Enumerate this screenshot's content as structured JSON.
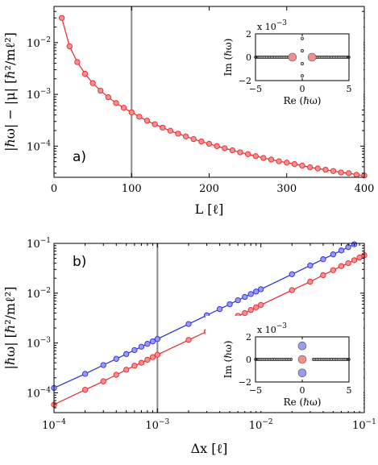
{
  "chart_data": [
    {
      "id": "a",
      "type": "line",
      "panel_label": "a)",
      "xlabel": "L [ℓ]",
      "ylabel": "|ℏω| − |μ| [ℏ²/mℓ²]",
      "xlim": [
        0,
        400
      ],
      "ylim": [
        2.5e-05,
        0.05
      ],
      "yscale": "log",
      "xticks": [
        0,
        100,
        200,
        300,
        400
      ],
      "xticklabels": [
        "0",
        "100",
        "200",
        "300",
        "400"
      ],
      "yticks": [
        0.0001,
        0.001,
        0.01
      ],
      "yticklabels": [
        "10",
        "10",
        "10"
      ],
      "ytickexps": [
        "−4",
        "−3",
        "−2"
      ],
      "vline": 100,
      "series": [
        {
          "color": "#e8262b",
          "fill": "#f29090",
          "x": [
            10,
            20,
            30,
            40,
            50,
            60,
            70,
            80,
            90,
            100,
            110,
            120,
            130,
            140,
            150,
            160,
            170,
            180,
            190,
            200,
            210,
            220,
            230,
            240,
            250,
            260,
            270,
            280,
            290,
            300,
            310,
            320,
            330,
            340,
            350,
            360,
            370,
            380,
            390,
            400
          ],
          "y": [
            0.03,
            0.0085,
            0.0042,
            0.0025,
            0.00165,
            0.00118,
            0.00088,
            0.00068,
            0.00055,
            0.00045,
            0.00037,
            0.00031,
            0.000265,
            0.000228,
            0.000198,
            0.000174,
            0.000154,
            0.000137,
            0.000123,
            0.000111,
            0.0001,
            9.1e-05,
            8.3e-05,
            7.6e-05,
            7e-05,
            6.4e-05,
            5.9e-05,
            5.5e-05,
            5.1e-05,
            4.8e-05,
            4.5e-05,
            4.2e-05,
            3.9e-05,
            3.7e-05,
            3.5e-05,
            3.3e-05,
            3.1e-05,
            3e-05,
            2.8e-05,
            2.7e-05
          ]
        }
      ],
      "inset": {
        "xlabel": "Re (ℏω)",
        "ylabel": "Im (ℏω)",
        "scale_label": "x 10",
        "scale_exp": "−3",
        "xlim": [
          -5,
          5
        ],
        "ylim": [
          -2,
          2
        ],
        "xticks": [
          -5,
          0,
          5
        ],
        "xticklabels": [
          "−5",
          "0",
          "5"
        ],
        "yticks": [
          -2,
          0,
          2
        ],
        "yticklabels": [
          "−2",
          "0",
          "2"
        ],
        "continuum": {
          "from": 1.2,
          "to": 5,
          "y": 0
        },
        "small_points": [
          {
            "x": 0,
            "y": 1.6
          },
          {
            "x": 0,
            "y": 0.55
          },
          {
            "x": 0,
            "y": -0.55
          },
          {
            "x": 0,
            "y": -1.6
          }
        ],
        "big_points": [
          {
            "x": -1.05,
            "y": 0,
            "color": "#f29090"
          },
          {
            "x": 1.05,
            "y": 0,
            "color": "#f29090"
          }
        ]
      }
    },
    {
      "id": "b",
      "type": "line",
      "panel_label": "b)",
      "xlabel": "Δx [ℓ]",
      "ylabel": "|ℏω| [ℏ²/mℓ²]",
      "xlim": [
        0.0001,
        0.1
      ],
      "ylim": [
        4e-05,
        0.1
      ],
      "xscale": "log",
      "yscale": "log",
      "xticks": [
        0.0001,
        0.001,
        0.01,
        0.1
      ],
      "xticklabels": [
        "10",
        "10",
        "10",
        "10"
      ],
      "xtickexps": [
        "−4",
        "−3",
        "−2",
        "−1"
      ],
      "yticks": [
        0.0001,
        0.001,
        0.01,
        0.1
      ],
      "yticklabels": [
        "10",
        "10",
        "10",
        "10"
      ],
      "ytickexps": [
        "−4",
        "−3",
        "−2",
        "−1"
      ],
      "vline": 0.001,
      "series": [
        {
          "color": "#2a2ae0",
          "fill": "#9a9af0",
          "x": [
            0.0001,
            0.0002,
            0.0003,
            0.0004,
            0.0005,
            0.0006,
            0.0007,
            0.0008,
            0.0009,
            0.001,
            0.002,
            0.003,
            0.004,
            0.005,
            0.006,
            0.007,
            0.008,
            0.009,
            0.01,
            0.02,
            0.03,
            0.04,
            0.05,
            0.06,
            0.07,
            0.08
          ],
          "y": [
            0.000125,
            0.00024,
            0.00036,
            0.00048,
            0.0006,
            0.00072,
            0.00084,
            0.00096,
            0.00108,
            0.0012,
            0.0024,
            0.0036,
            0.0048,
            0.006,
            0.0072,
            0.0084,
            0.0096,
            0.0108,
            0.012,
            0.024,
            0.036,
            0.048,
            0.06,
            0.072,
            0.084,
            0.096
          ]
        },
        {
          "color": "#e8262b",
          "fill": "#f29090",
          "x": [
            0.0001,
            0.0002,
            0.0003,
            0.0004,
            0.0005,
            0.0006,
            0.0007,
            0.0008,
            0.0009,
            0.001,
            0.002,
            0.003,
            0.004,
            0.005,
            0.006,
            0.007,
            0.008,
            0.009,
            0.01,
            0.02,
            0.03,
            0.04,
            0.05,
            0.06,
            0.07,
            0.08,
            0.09,
            0.1
          ],
          "y": [
            5.8e-05,
            0.000115,
            0.00017,
            0.00023,
            0.00029,
            0.00035,
            0.0004,
            0.00046,
            0.00052,
            0.00058,
            0.00115,
            0.0017,
            0.0023,
            0.0029,
            0.0035,
            0.004,
            0.0046,
            0.0052,
            0.0058,
            0.0115,
            0.017,
            0.023,
            0.029,
            0.035,
            0.04,
            0.046,
            0.052,
            0.058
          ]
        }
      ],
      "inset": {
        "xlabel": "Re (ℏω)",
        "ylabel": "Im (ℏω)",
        "scale_label": "x 10",
        "scale_exp": "−3",
        "xlim": [
          -5,
          5
        ],
        "ylim": [
          -2,
          2
        ],
        "xticks": [
          -5,
          0,
          5
        ],
        "xticklabels": [
          "−5",
          "0",
          "5"
        ],
        "yticks": [
          -2,
          0,
          2
        ],
        "yticklabels": [
          "−2",
          "0",
          "2"
        ],
        "continuum": {
          "from": 1.2,
          "to": 5,
          "y": 0
        },
        "small_points": [],
        "big_points": [
          {
            "x": 0,
            "y": 1.2,
            "color": "#9a9af0"
          },
          {
            "x": 0,
            "y": 0,
            "color": "#f29090"
          },
          {
            "x": 0,
            "y": -1.2,
            "color": "#9a9af0"
          }
        ]
      }
    }
  ]
}
